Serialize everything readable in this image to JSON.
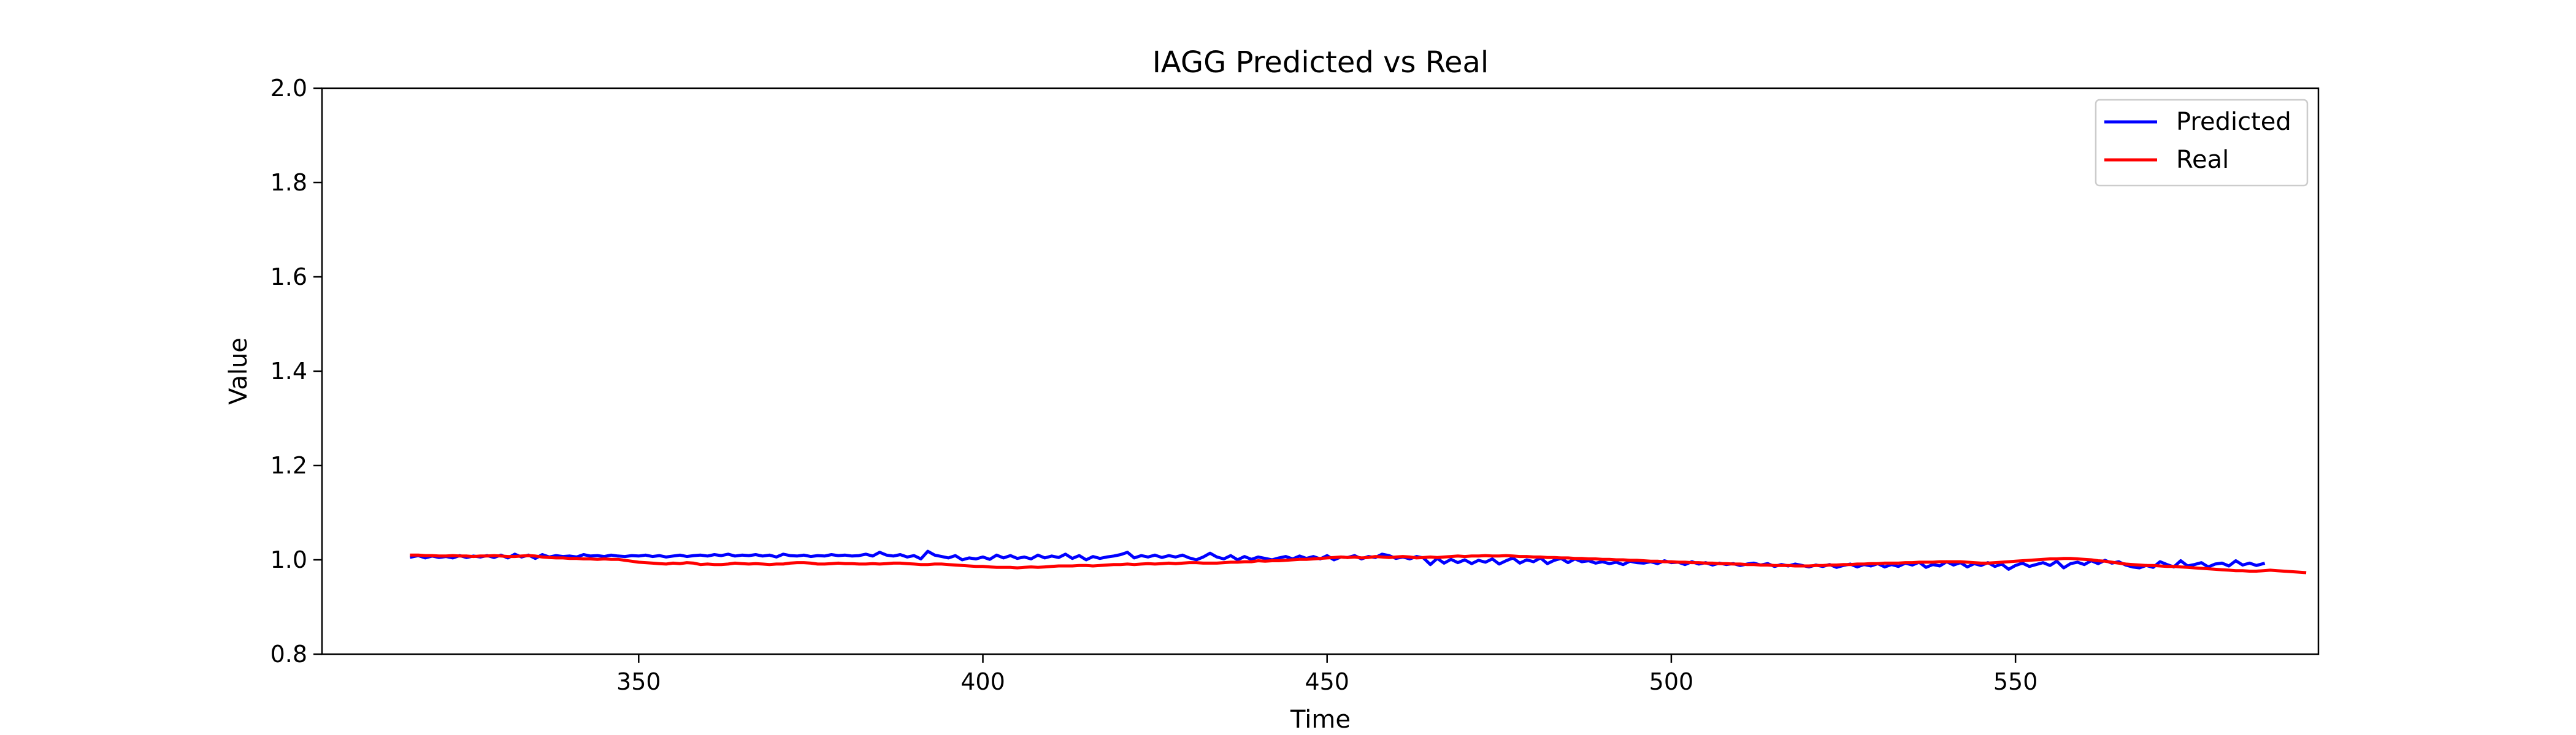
{
  "chart_data": {
    "type": "line",
    "title": "IAGG Predicted vs Real",
    "xlabel": "Time",
    "ylabel": "Value",
    "xlim": [
      304,
      594
    ],
    "ylim": [
      0.8,
      2.0
    ],
    "x_start": 317,
    "x_step": 1,
    "xticks": [
      350,
      400,
      450,
      500,
      550
    ],
    "yticks": [
      0.8,
      1.0,
      1.2,
      1.4,
      1.6,
      1.8,
      2.0
    ],
    "ytick_labels": [
      "0.8",
      "1.0",
      "1.2",
      "1.4",
      "1.6",
      "1.8",
      "2.0"
    ],
    "grid": false,
    "legend_position": "top-right",
    "series": [
      {
        "name": "Predicted",
        "color": "#0000ff",
        "values": [
          1.006,
          1.009,
          1.004,
          1.008,
          1.005,
          1.007,
          1.004,
          1.009,
          1.005,
          1.008,
          1.006,
          1.009,
          1.005,
          1.01,
          1.004,
          1.012,
          1.006,
          1.01,
          1.003,
          1.011,
          1.006,
          1.009,
          1.007,
          1.008,
          1.006,
          1.011,
          1.008,
          1.009,
          1.007,
          1.01,
          1.008,
          1.007,
          1.009,
          1.008,
          1.01,
          1.007,
          1.009,
          1.006,
          1.008,
          1.01,
          1.007,
          1.009,
          1.01,
          1.008,
          1.011,
          1.009,
          1.012,
          1.008,
          1.01,
          1.009,
          1.011,
          1.008,
          1.01,
          1.006,
          1.012,
          1.009,
          1.008,
          1.01,
          1.007,
          1.009,
          1.008,
          1.011,
          1.009,
          1.01,
          1.008,
          1.009,
          1.012,
          1.008,
          1.016,
          1.01,
          1.008,
          1.011,
          1.006,
          1.009,
          1.002,
          1.018,
          1.01,
          1.007,
          1.004,
          1.009,
          1.0,
          1.004,
          1.002,
          1.006,
          1.001,
          1.01,
          1.004,
          1.009,
          1.003,
          1.006,
          1.002,
          1.01,
          1.004,
          1.008,
          1.005,
          1.012,
          1.003,
          1.009,
          1.0,
          1.007,
          1.003,
          1.006,
          1.008,
          1.011,
          1.016,
          1.004,
          1.009,
          1.006,
          1.01,
          1.005,
          1.009,
          1.006,
          1.01,
          1.004,
          1.0,
          1.006,
          1.014,
          1.006,
          1.002,
          1.009,
          1.0,
          1.007,
          1.001,
          1.006,
          1.003,
          1.0,
          1.004,
          1.007,
          1.002,
          1.008,
          1.003,
          1.007,
          1.002,
          1.009,
          1.0,
          1.006,
          1.005,
          1.009,
          1.002,
          1.007,
          1.005,
          1.012,
          1.009,
          1.003,
          1.006,
          1.002,
          1.007,
          1.004,
          0.99,
          1.003,
          0.993,
          1.001,
          0.994,
          1.0,
          0.992,
          0.999,
          0.995,
          1.002,
          0.991,
          0.998,
          1.004,
          0.993,
          1.0,
          0.996,
          1.004,
          0.992,
          0.999,
          1.003,
          0.994,
          1.002,
          0.996,
          0.998,
          0.993,
          0.996,
          0.992,
          0.995,
          0.99,
          0.997,
          0.994,
          0.993,
          0.996,
          0.992,
          0.998,
          0.994,
          0.995,
          0.99,
          0.996,
          0.991,
          0.994,
          0.989,
          0.993,
          0.99,
          0.992,
          0.988,
          0.991,
          0.993,
          0.989,
          0.992,
          0.986,
          0.99,
          0.987,
          0.991,
          0.988,
          0.985,
          0.989,
          0.986,
          0.99,
          0.984,
          0.988,
          0.991,
          0.985,
          0.99,
          0.987,
          0.992,
          0.985,
          0.99,
          0.986,
          0.993,
          0.989,
          0.995,
          0.984,
          0.99,
          0.987,
          0.996,
          0.989,
          0.994,
          0.985,
          0.992,
          0.988,
          0.994,
          0.986,
          0.991,
          0.98,
          0.988,
          0.993,
          0.986,
          0.99,
          0.994,
          0.988,
          0.997,
          0.983,
          0.992,
          0.995,
          0.99,
          0.998,
          0.992,
          0.999,
          0.993,
          0.996,
          0.989,
          0.985,
          0.983,
          0.988,
          0.984,
          0.996,
          0.99,
          0.985,
          0.998,
          0.987,
          0.99,
          0.994,
          0.985,
          0.991,
          0.993,
          0.987,
          0.998,
          0.989,
          0.993,
          0.988,
          0.992
        ]
      },
      {
        "name": "Real",
        "color": "#ff0000",
        "values": [
          1.01,
          1.01,
          1.009,
          1.009,
          1.008,
          1.008,
          1.009,
          1.008,
          1.008,
          1.007,
          1.008,
          1.008,
          1.009,
          1.008,
          1.007,
          1.007,
          1.008,
          1.009,
          1.008,
          1.006,
          1.005,
          1.004,
          1.004,
          1.003,
          1.003,
          1.002,
          1.002,
          1.001,
          1.002,
          1.001,
          1.001,
          0.999,
          0.997,
          0.995,
          0.994,
          0.993,
          0.992,
          0.991,
          0.993,
          0.992,
          0.994,
          0.993,
          0.99,
          0.991,
          0.99,
          0.99,
          0.991,
          0.993,
          0.992,
          0.991,
          0.992,
          0.991,
          0.99,
          0.991,
          0.991,
          0.993,
          0.994,
          0.994,
          0.993,
          0.991,
          0.991,
          0.992,
          0.993,
          0.992,
          0.992,
          0.991,
          0.991,
          0.992,
          0.991,
          0.992,
          0.993,
          0.993,
          0.992,
          0.991,
          0.99,
          0.99,
          0.991,
          0.991,
          0.99,
          0.989,
          0.988,
          0.987,
          0.986,
          0.986,
          0.985,
          0.984,
          0.984,
          0.984,
          0.983,
          0.984,
          0.985,
          0.984,
          0.985,
          0.986,
          0.987,
          0.987,
          0.987,
          0.988,
          0.988,
          0.987,
          0.988,
          0.989,
          0.99,
          0.99,
          0.991,
          0.99,
          0.991,
          0.992,
          0.991,
          0.992,
          0.993,
          0.992,
          0.993,
          0.994,
          0.994,
          0.993,
          0.993,
          0.993,
          0.994,
          0.995,
          0.995,
          0.996,
          0.996,
          0.998,
          0.997,
          0.998,
          0.998,
          0.999,
          1.0,
          1.001,
          1.001,
          1.002,
          1.003,
          1.004,
          1.005,
          1.006,
          1.005,
          1.006,
          1.004,
          1.005,
          1.007,
          1.006,
          1.005,
          1.006,
          1.007,
          1.006,
          1.004,
          1.005,
          1.006,
          1.005,
          1.006,
          1.007,
          1.008,
          1.007,
          1.008,
          1.008,
          1.009,
          1.008,
          1.008,
          1.009,
          1.008,
          1.007,
          1.007,
          1.006,
          1.006,
          1.005,
          1.005,
          1.004,
          1.004,
          1.003,
          1.003,
          1.002,
          1.002,
          1.001,
          1.001,
          1.0,
          1.0,
          0.999,
          0.999,
          0.998,
          0.997,
          0.997,
          0.996,
          0.996,
          0.995,
          0.995,
          0.994,
          0.994,
          0.993,
          0.993,
          0.992,
          0.992,
          0.991,
          0.991,
          0.99,
          0.99,
          0.989,
          0.989,
          0.988,
          0.988,
          0.988,
          0.987,
          0.987,
          0.987,
          0.988,
          0.988,
          0.989,
          0.989,
          0.99,
          0.99,
          0.991,
          0.991,
          0.992,
          0.992,
          0.993,
          0.993,
          0.993,
          0.994,
          0.994,
          0.995,
          0.995,
          0.995,
          0.996,
          0.996,
          0.996,
          0.996,
          0.995,
          0.994,
          0.993,
          0.993,
          0.994,
          0.995,
          0.996,
          0.997,
          0.998,
          0.999,
          1.0,
          1.001,
          1.002,
          1.002,
          1.003,
          1.003,
          1.002,
          1.001,
          1.0,
          0.998,
          0.997,
          0.995,
          0.993,
          0.991,
          0.99,
          0.989,
          0.988,
          0.988,
          0.987,
          0.986,
          0.986,
          0.985,
          0.984,
          0.983,
          0.982,
          0.981,
          0.98,
          0.979,
          0.978,
          0.977,
          0.977,
          0.976,
          0.976,
          0.977,
          0.978,
          0.977,
          0.976,
          0.975,
          0.974,
          0.973
        ]
      }
    ]
  }
}
